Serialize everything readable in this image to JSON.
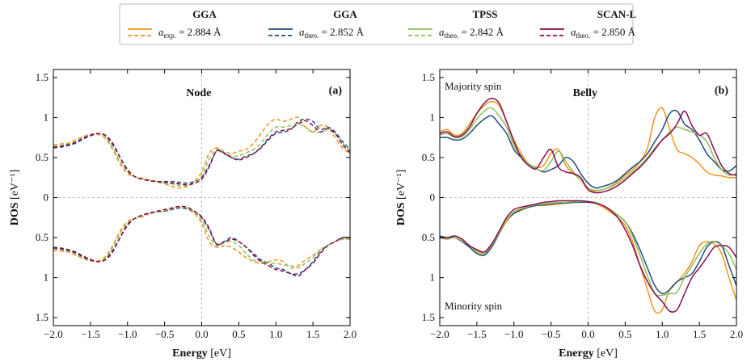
{
  "legend": [
    {
      "title": "GGA",
      "symbol": "a",
      "subscript": "exp.",
      "text": " = 2.884 Å",
      "color": "#f0951e"
    },
    {
      "title": "GGA",
      "symbol": "a",
      "subscript": "theo.",
      "text": " = 2.852 Å",
      "color": "#1f4e79"
    },
    {
      "title": "TPSS",
      "symbol": "a",
      "subscript": "theo.",
      "text": " = 2.842 Å",
      "color": "#8fbf5a"
    },
    {
      "title": "SCAN-L",
      "symbol": "a",
      "subscript": "theo.",
      "text": " = 2.850 Å",
      "color": "#8b0a50"
    }
  ],
  "chart_data": [
    {
      "type": "line",
      "title": "Node",
      "panel_label": "(a)",
      "line_style": "dashed",
      "xlabel": {
        "text": "Energy",
        "unit": " [eV]"
      },
      "ylabel": {
        "text": "DOS",
        "unit": " [eV⁻¹]"
      },
      "xlim": [
        -2,
        2
      ],
      "ylim": [
        -1.6,
        1.6
      ],
      "xticks": [
        {
          "value": -2,
          "label": "−2.0"
        },
        {
          "value": -1.5,
          "label": "−1.5"
        },
        {
          "value": -1,
          "label": "−1.0"
        },
        {
          "value": -0.5,
          "label": "−0.5"
        },
        {
          "value": 0,
          "label": "0.0"
        },
        0.5,
        {
          "value": 1,
          "label": "1.0"
        },
        1.5,
        {
          "value": 2,
          "label": "2.0"
        }
      ],
      "yticks": [
        1.5,
        1,
        0.5,
        0,
        {
          "value": -0.5,
          "label": "0.5"
        },
        {
          "value": -1,
          "label": "1"
        },
        {
          "value": -1.5,
          "label": "1.5"
        }
      ],
      "x": [
        -2.0,
        -1.9,
        -1.8,
        -1.7,
        -1.6,
        -1.5,
        -1.4,
        -1.3,
        -1.2,
        -1.1,
        -1.0,
        -0.9,
        -0.8,
        -0.7,
        -0.6,
        -0.5,
        -0.4,
        -0.3,
        -0.2,
        -0.1,
        0.0,
        0.1,
        0.2,
        0.3,
        0.4,
        0.5,
        0.6,
        0.7,
        0.8,
        0.9,
        1.0,
        1.1,
        1.2,
        1.3,
        1.4,
        1.5,
        1.6,
        1.7,
        1.8,
        1.9,
        2.0
      ],
      "series": [
        {
          "color": "#f0951e",
          "values": [
            0.66,
            0.67,
            0.68,
            0.72,
            0.76,
            0.79,
            0.79,
            0.74,
            0.6,
            0.42,
            0.3,
            0.26,
            0.24,
            0.22,
            0.2,
            0.17,
            0.14,
            0.12,
            0.14,
            0.2,
            0.32,
            0.55,
            0.62,
            0.58,
            0.55,
            0.58,
            0.6,
            0.68,
            0.8,
            0.92,
            0.98,
            0.95,
            0.98,
            1.0,
            0.88,
            0.82,
            0.9,
            0.88,
            0.75,
            0.62,
            0.55
          ]
        },
        {
          "color": "#1f4e79",
          "values": [
            0.62,
            0.63,
            0.65,
            0.68,
            0.73,
            0.77,
            0.8,
            0.77,
            0.66,
            0.5,
            0.35,
            0.26,
            0.23,
            0.21,
            0.2,
            0.2,
            0.2,
            0.19,
            0.18,
            0.2,
            0.25,
            0.4,
            0.58,
            0.55,
            0.5,
            0.48,
            0.52,
            0.55,
            0.62,
            0.72,
            0.8,
            0.82,
            0.85,
            0.95,
            0.98,
            0.95,
            0.85,
            0.88,
            0.82,
            0.7,
            0.6
          ]
        },
        {
          "color": "#8fbf5a",
          "values": [
            0.64,
            0.65,
            0.67,
            0.7,
            0.75,
            0.78,
            0.8,
            0.76,
            0.62,
            0.45,
            0.32,
            0.26,
            0.23,
            0.21,
            0.19,
            0.18,
            0.17,
            0.15,
            0.15,
            0.18,
            0.27,
            0.48,
            0.6,
            0.56,
            0.52,
            0.52,
            0.56,
            0.6,
            0.68,
            0.8,
            0.88,
            0.88,
            0.9,
            0.92,
            0.88,
            0.82,
            0.82,
            0.85,
            0.8,
            0.68,
            0.58
          ]
        },
        {
          "color": "#8b0a50",
          "values": [
            0.63,
            0.64,
            0.66,
            0.69,
            0.74,
            0.78,
            0.8,
            0.78,
            0.68,
            0.5,
            0.34,
            0.26,
            0.23,
            0.21,
            0.2,
            0.19,
            0.18,
            0.17,
            0.16,
            0.18,
            0.23,
            0.38,
            0.58,
            0.56,
            0.5,
            0.47,
            0.5,
            0.55,
            0.63,
            0.74,
            0.82,
            0.84,
            0.86,
            0.92,
            0.96,
            0.9,
            0.82,
            0.86,
            0.8,
            0.66,
            0.56
          ]
        },
        {
          "color": "#f0951e",
          "values": [
            -0.66,
            -0.67,
            -0.68,
            -0.72,
            -0.76,
            -0.79,
            -0.79,
            -0.74,
            -0.6,
            -0.42,
            -0.3,
            -0.26,
            -0.24,
            -0.2,
            -0.18,
            -0.17,
            -0.14,
            -0.12,
            -0.14,
            -0.2,
            -0.32,
            -0.55,
            -0.62,
            -0.6,
            -0.62,
            -0.68,
            -0.75,
            -0.8,
            -0.82,
            -0.8,
            -0.78,
            -0.8,
            -0.88,
            -0.85,
            -0.78,
            -0.72,
            -0.65,
            -0.6,
            -0.55,
            -0.52,
            -0.52
          ]
        },
        {
          "color": "#1f4e79",
          "values": [
            -0.62,
            -0.63,
            -0.65,
            -0.68,
            -0.73,
            -0.77,
            -0.8,
            -0.77,
            -0.66,
            -0.5,
            -0.35,
            -0.26,
            -0.22,
            -0.2,
            -0.18,
            -0.17,
            -0.15,
            -0.13,
            -0.14,
            -0.18,
            -0.25,
            -0.4,
            -0.58,
            -0.55,
            -0.5,
            -0.55,
            -0.62,
            -0.7,
            -0.78,
            -0.82,
            -0.88,
            -0.9,
            -0.95,
            -0.95,
            -0.9,
            -0.8,
            -0.68,
            -0.6,
            -0.55,
            -0.5,
            -0.5
          ]
        },
        {
          "color": "#8fbf5a",
          "values": [
            -0.64,
            -0.65,
            -0.67,
            -0.7,
            -0.75,
            -0.78,
            -0.8,
            -0.76,
            -0.62,
            -0.45,
            -0.32,
            -0.26,
            -0.22,
            -0.2,
            -0.18,
            -0.16,
            -0.14,
            -0.12,
            -0.13,
            -0.18,
            -0.28,
            -0.48,
            -0.6,
            -0.56,
            -0.55,
            -0.6,
            -0.7,
            -0.78,
            -0.8,
            -0.82,
            -0.82,
            -0.84,
            -0.85,
            -0.88,
            -0.82,
            -0.75,
            -0.65,
            -0.6,
            -0.55,
            -0.52,
            -0.52
          ]
        },
        {
          "color": "#8b0a50",
          "values": [
            -0.63,
            -0.64,
            -0.66,
            -0.69,
            -0.74,
            -0.78,
            -0.8,
            -0.78,
            -0.68,
            -0.5,
            -0.34,
            -0.26,
            -0.22,
            -0.19,
            -0.17,
            -0.15,
            -0.13,
            -0.11,
            -0.12,
            -0.17,
            -0.24,
            -0.38,
            -0.58,
            -0.56,
            -0.52,
            -0.55,
            -0.62,
            -0.72,
            -0.8,
            -0.85,
            -0.9,
            -0.92,
            -0.95,
            -0.98,
            -0.9,
            -0.82,
            -0.7,
            -0.6,
            -0.55,
            -0.5,
            -0.5
          ]
        }
      ]
    },
    {
      "type": "line",
      "title": "Belly",
      "panel_label": "(b)",
      "line_style": "solid",
      "annotations": [
        "Majority spin",
        "Minority spin"
      ],
      "xlabel": {
        "text": "Energy",
        "unit": " [eV]"
      },
      "ylabel": {
        "text": "DOS",
        "unit": " [eV⁻¹]"
      },
      "xlim": [
        -2,
        2
      ],
      "ylim": [
        -1.6,
        1.6
      ],
      "xticks": [
        {
          "value": -2,
          "label": "−2.0"
        },
        {
          "value": -1.5,
          "label": "−1.5"
        },
        {
          "value": -1,
          "label": "−1.0"
        },
        {
          "value": -0.5,
          "label": "−0.5"
        },
        {
          "value": 0,
          "label": "0.0"
        },
        0.5,
        {
          "value": 1,
          "label": "1.0"
        },
        1.5,
        {
          "value": 2,
          "label": "2.0"
        }
      ],
      "yticks": [
        1.5,
        1,
        0.5,
        0,
        {
          "value": -0.5,
          "label": "0.5"
        },
        {
          "value": -1,
          "label": "1"
        },
        {
          "value": -1.5,
          "label": "1.5"
        }
      ],
      "x": [
        -2.0,
        -1.9,
        -1.8,
        -1.7,
        -1.6,
        -1.5,
        -1.4,
        -1.3,
        -1.2,
        -1.1,
        -1.0,
        -0.9,
        -0.8,
        -0.7,
        -0.6,
        -0.5,
        -0.4,
        -0.3,
        -0.2,
        -0.1,
        0.0,
        0.1,
        0.2,
        0.3,
        0.4,
        0.5,
        0.6,
        0.7,
        0.8,
        0.9,
        1.0,
        1.1,
        1.2,
        1.3,
        1.4,
        1.5,
        1.6,
        1.7,
        1.8,
        1.9,
        2.0
      ],
      "series": [
        {
          "color": "#f0951e",
          "values": [
            0.82,
            0.85,
            0.78,
            0.8,
            0.92,
            1.05,
            1.15,
            1.2,
            1.15,
            0.95,
            0.72,
            0.55,
            0.42,
            0.38,
            0.4,
            0.55,
            0.6,
            0.4,
            0.3,
            0.22,
            0.1,
            0.08,
            0.1,
            0.14,
            0.2,
            0.28,
            0.35,
            0.45,
            0.62,
            1.0,
            1.12,
            0.85,
            0.6,
            0.55,
            0.5,
            0.42,
            0.32,
            0.28,
            0.27,
            0.25,
            0.25
          ]
        },
        {
          "color": "#1f4e79",
          "values": [
            0.75,
            0.75,
            0.72,
            0.73,
            0.8,
            0.9,
            0.98,
            1.02,
            0.92,
            0.8,
            0.6,
            0.5,
            0.42,
            0.36,
            0.32,
            0.35,
            0.4,
            0.5,
            0.45,
            0.3,
            0.18,
            0.12,
            0.14,
            0.17,
            0.22,
            0.3,
            0.38,
            0.45,
            0.55,
            0.7,
            0.85,
            1.05,
            1.08,
            0.92,
            0.85,
            0.72,
            0.55,
            0.45,
            0.35,
            0.33,
            0.4
          ]
        },
        {
          "color": "#8fbf5a",
          "values": [
            0.78,
            0.8,
            0.75,
            0.76,
            0.85,
            0.98,
            1.08,
            1.12,
            1.02,
            0.88,
            0.65,
            0.52,
            0.42,
            0.36,
            0.34,
            0.45,
            0.58,
            0.45,
            0.32,
            0.22,
            0.12,
            0.09,
            0.1,
            0.13,
            0.18,
            0.25,
            0.32,
            0.4,
            0.5,
            0.62,
            0.72,
            0.82,
            0.88,
            0.85,
            0.82,
            0.78,
            0.7,
            0.5,
            0.35,
            0.28,
            0.3
          ]
        },
        {
          "color": "#8b0a50",
          "values": [
            0.8,
            0.82,
            0.76,
            0.78,
            0.88,
            1.05,
            1.18,
            1.24,
            1.18,
            0.95,
            0.7,
            0.5,
            0.4,
            0.36,
            0.5,
            0.6,
            0.38,
            0.32,
            0.3,
            0.25,
            0.1,
            0.06,
            0.07,
            0.1,
            0.15,
            0.22,
            0.3,
            0.38,
            0.48,
            0.6,
            0.72,
            0.8,
            0.92,
            1.08,
            0.9,
            0.78,
            0.8,
            0.6,
            0.4,
            0.3,
            0.28
          ]
        },
        {
          "color": "#f0951e",
          "values": [
            -0.5,
            -0.52,
            -0.48,
            -0.52,
            -0.6,
            -0.66,
            -0.7,
            -0.6,
            -0.45,
            -0.3,
            -0.2,
            -0.16,
            -0.12,
            -0.1,
            -0.1,
            -0.09,
            -0.08,
            -0.07,
            -0.06,
            -0.05,
            -0.05,
            -0.07,
            -0.12,
            -0.18,
            -0.25,
            -0.35,
            -0.55,
            -0.85,
            -1.15,
            -1.42,
            -1.4,
            -1.15,
            -1.05,
            -0.95,
            -0.8,
            -0.6,
            -0.55,
            -0.58,
            -0.7,
            -1.0,
            -1.28
          ]
        },
        {
          "color": "#1f4e79",
          "values": [
            -0.48,
            -0.5,
            -0.5,
            -0.55,
            -0.62,
            -0.7,
            -0.72,
            -0.62,
            -0.45,
            -0.28,
            -0.2,
            -0.15,
            -0.12,
            -0.1,
            -0.09,
            -0.08,
            -0.07,
            -0.07,
            -0.06,
            -0.06,
            -0.06,
            -0.07,
            -0.1,
            -0.15,
            -0.22,
            -0.3,
            -0.45,
            -0.65,
            -0.88,
            -1.1,
            -1.2,
            -1.15,
            -1.05,
            -1.0,
            -0.95,
            -0.8,
            -0.62,
            -0.55,
            -0.6,
            -0.85,
            -1.1
          ]
        },
        {
          "color": "#8fbf5a",
          "values": [
            -0.5,
            -0.52,
            -0.5,
            -0.54,
            -0.6,
            -0.68,
            -0.7,
            -0.6,
            -0.44,
            -0.28,
            -0.18,
            -0.14,
            -0.11,
            -0.09,
            -0.08,
            -0.07,
            -0.06,
            -0.06,
            -0.05,
            -0.05,
            -0.05,
            -0.06,
            -0.1,
            -0.15,
            -0.22,
            -0.3,
            -0.48,
            -0.72,
            -0.98,
            -1.2,
            -1.22,
            -1.2,
            -1.18,
            -1.0,
            -0.85,
            -0.7,
            -0.58,
            -0.55,
            -0.6,
            -0.7,
            -0.9
          ]
        },
        {
          "color": "#8b0a50",
          "values": [
            -0.5,
            -0.5,
            -0.48,
            -0.52,
            -0.6,
            -0.65,
            -0.68,
            -0.58,
            -0.42,
            -0.25,
            -0.15,
            -0.12,
            -0.1,
            -0.08,
            -0.06,
            -0.05,
            -0.04,
            -0.04,
            -0.04,
            -0.04,
            -0.05,
            -0.07,
            -0.1,
            -0.16,
            -0.25,
            -0.4,
            -0.6,
            -0.85,
            -1.05,
            -1.2,
            -1.3,
            -1.42,
            -1.4,
            -1.2,
            -1.0,
            -0.88,
            -0.75,
            -0.62,
            -0.6,
            -0.62,
            -0.75
          ]
        }
      ]
    }
  ]
}
